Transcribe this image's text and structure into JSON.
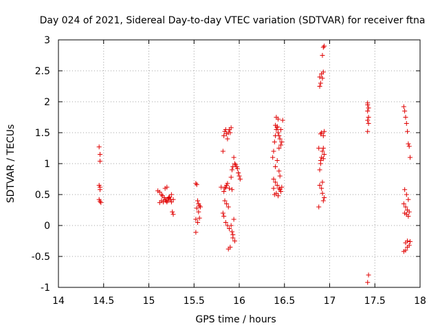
{
  "chart_data": {
    "type": "scatter",
    "title": "Day 024 of 2021, Sidereal Day-to-day VTEC variation (SDTVAR) for receiver ftna",
    "xlabel": "GPS time / hours",
    "ylabel": "SDTVAR / TECUs",
    "xlim": [
      14,
      18
    ],
    "ylim": [
      -1,
      3
    ],
    "xticks": [
      14,
      14.5,
      15,
      15.5,
      16,
      16.5,
      17,
      17.5,
      18
    ],
    "yticks": [
      -1,
      -0.5,
      0,
      0.5,
      1,
      1.5,
      2,
      2.5,
      3
    ],
    "xtick_labels": [
      "14",
      "14.5",
      "15",
      "15.5",
      "16",
      "16.5",
      "17",
      "17.5",
      "18"
    ],
    "ytick_labels": [
      "-1",
      "-0.5",
      "0",
      "0.5",
      "1",
      "1.5",
      "2",
      "2.5",
      "3"
    ],
    "grid": true,
    "marker": "plus",
    "color": "#e00000",
    "series": [
      {
        "name": "SDTVAR",
        "x": [
          14.45,
          14.46,
          14.46,
          14.45,
          14.46,
          14.46,
          14.45,
          14.46,
          14.47,
          15.1,
          15.12,
          15.14,
          15.15,
          15.17,
          15.18,
          15.19,
          15.2,
          15.21,
          15.22,
          15.23,
          15.24,
          15.25,
          15.26,
          15.27,
          15.18,
          15.2,
          15.22,
          15.14,
          15.16,
          15.12,
          15.25,
          15.27,
          15.52,
          15.53,
          15.54,
          15.55,
          15.56,
          15.53,
          15.55,
          15.57,
          15.52,
          15.54,
          15.56,
          15.52,
          15.8,
          15.82,
          15.83,
          15.84,
          15.85,
          15.86,
          15.87,
          15.88,
          15.89,
          15.9,
          15.91,
          15.92,
          15.93,
          15.94,
          15.95,
          15.96,
          15.97,
          15.98,
          15.99,
          16.0,
          16.01,
          15.84,
          15.86,
          15.88,
          15.82,
          15.83,
          15.85,
          15.87,
          15.89,
          15.91,
          15.92,
          15.93,
          15.9,
          15.88,
          15.86,
          15.84,
          15.83,
          15.85,
          15.87,
          15.89,
          15.91,
          15.93,
          15.95,
          15.92,
          15.94,
          16.37,
          16.38,
          16.39,
          16.4,
          16.41,
          16.42,
          16.43,
          16.44,
          16.45,
          16.46,
          16.47,
          16.48,
          16.38,
          16.4,
          16.42,
          16.44,
          16.46,
          16.39,
          16.41,
          16.43,
          16.45,
          16.47,
          16.4,
          16.42,
          16.44,
          16.46,
          16.41,
          16.43,
          16.45,
          16.38,
          16.4,
          16.42,
          16.44,
          16.88,
          16.89,
          16.9,
          16.91,
          16.92,
          16.93,
          16.94,
          16.89,
          16.91,
          16.93,
          16.92,
          16.93,
          16.89,
          16.9,
          16.92,
          16.94,
          16.91,
          16.93,
          16.88,
          16.9,
          16.92,
          16.94,
          16.89,
          16.91,
          16.93,
          16.92,
          16.94,
          16.9,
          16.93,
          17.42,
          17.42,
          17.43,
          17.42,
          17.43,
          17.42,
          17.43,
          17.42,
          17.43,
          17.42,
          17.43,
          17.82,
          17.83,
          17.84,
          17.85,
          17.86,
          17.87,
          17.88,
          17.89,
          17.83,
          17.85,
          17.87,
          17.82,
          17.84,
          17.86,
          17.88,
          17.83,
          17.85,
          17.87,
          17.84,
          17.86,
          17.88,
          17.89,
          17.82,
          17.84,
          17.86
        ],
        "y": [
          1.27,
          1.15,
          1.04,
          0.65,
          0.62,
          0.58,
          0.42,
          0.39,
          0.37,
          0.56,
          0.54,
          0.5,
          0.48,
          0.45,
          0.42,
          0.4,
          0.38,
          0.4,
          0.44,
          0.46,
          0.42,
          0.38,
          0.22,
          0.18,
          0.6,
          0.62,
          0.45,
          0.4,
          0.38,
          0.37,
          0.5,
          0.42,
          0.68,
          0.66,
          0.4,
          0.35,
          0.32,
          0.28,
          0.22,
          0.3,
          0.1,
          0.05,
          0.12,
          -0.11,
          0.62,
          1.2,
          1.45,
          1.52,
          1.55,
          1.48,
          1.4,
          1.5,
          1.55,
          1.5,
          1.58,
          0.9,
          0.95,
          1.1,
          1.0,
          0.98,
          0.95,
          0.92,
          0.85,
          0.8,
          0.75,
          0.4,
          0.35,
          0.3,
          0.2,
          0.15,
          0.05,
          0.0,
          -0.05,
          0.0,
          -0.1,
          -0.15,
          -0.35,
          -0.38,
          0.65,
          0.6,
          0.55,
          0.62,
          0.68,
          0.6,
          0.78,
          -0.2,
          -0.25,
          0.58,
          0.1,
          1.1,
          1.2,
          1.35,
          1.45,
          1.55,
          1.6,
          1.5,
          1.45,
          1.4,
          1.55,
          1.35,
          1.7,
          0.75,
          0.7,
          0.65,
          0.6,
          0.55,
          0.5,
          0.52,
          0.48,
          0.58,
          0.62,
          0.95,
          1.05,
          1.25,
          1.3,
          1.75,
          1.72,
          0.8,
          0.6,
          1.62,
          1.58,
          0.88,
          0.3,
          0.9,
          1.0,
          1.1,
          1.2,
          1.25,
          1.15,
          2.4,
          2.45,
          2.48,
          2.75,
          2.88,
          2.25,
          2.3,
          2.38,
          2.9,
          1.5,
          1.45,
          1.25,
          1.05,
          0.7,
          0.45,
          0.65,
          0.6,
          0.4,
          0.52,
          1.52,
          1.48,
          1.08,
          1.98,
          1.95,
          1.9,
          1.85,
          1.75,
          1.7,
          1.65,
          1.52,
          -0.8,
          -0.92,
          1.9,
          1.92,
          1.85,
          1.75,
          1.65,
          1.52,
          1.32,
          1.28,
          1.1,
          0.58,
          0.5,
          0.42,
          0.35,
          0.3,
          0.25,
          0.22,
          0.2,
          0.18,
          0.15,
          -0.28,
          -0.25,
          -0.32,
          -0.26,
          -0.42,
          -0.4,
          -0.35
        ]
      }
    ]
  }
}
